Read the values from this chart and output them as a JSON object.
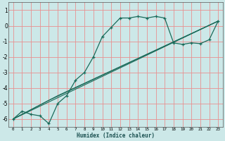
{
  "xlabel": "Humidex (Indice chaleur)",
  "ylabel": "",
  "bg_color": "#cce8e8",
  "grid_color": "#e89090",
  "line_color": "#1a6b5a",
  "xlim": [
    -0.5,
    23.5
  ],
  "ylim": [
    -6.5,
    1.5
  ],
  "xticks": [
    0,
    1,
    2,
    3,
    4,
    5,
    6,
    7,
    8,
    9,
    10,
    11,
    12,
    13,
    14,
    15,
    16,
    17,
    18,
    19,
    20,
    21,
    22,
    23
  ],
  "yticks": [
    -6,
    -5,
    -4,
    -3,
    -2,
    -1,
    0,
    1
  ],
  "main_x": [
    0,
    1,
    2,
    3,
    4,
    5,
    6,
    7,
    8,
    9,
    10,
    11,
    12,
    13,
    14,
    15,
    16,
    17,
    18,
    19,
    20,
    21,
    22,
    23
  ],
  "main_y": [
    -6.0,
    -5.5,
    -5.7,
    -5.8,
    -6.3,
    -5.0,
    -4.5,
    -3.5,
    -3.0,
    -2.0,
    -0.7,
    -0.1,
    0.5,
    0.5,
    0.6,
    0.5,
    0.6,
    0.5,
    -1.1,
    -1.2,
    -1.1,
    -1.15,
    -0.9,
    0.3
  ],
  "line2_x": [
    0,
    23
  ],
  "line2_y": [
    -6.0,
    0.3
  ],
  "line3_x": [
    0,
    5,
    23
  ],
  "line3_y": [
    -6.0,
    -4.5,
    0.3
  ],
  "line4_x": [
    0,
    4,
    23
  ],
  "line4_y": [
    -6.0,
    -4.8,
    0.3
  ]
}
